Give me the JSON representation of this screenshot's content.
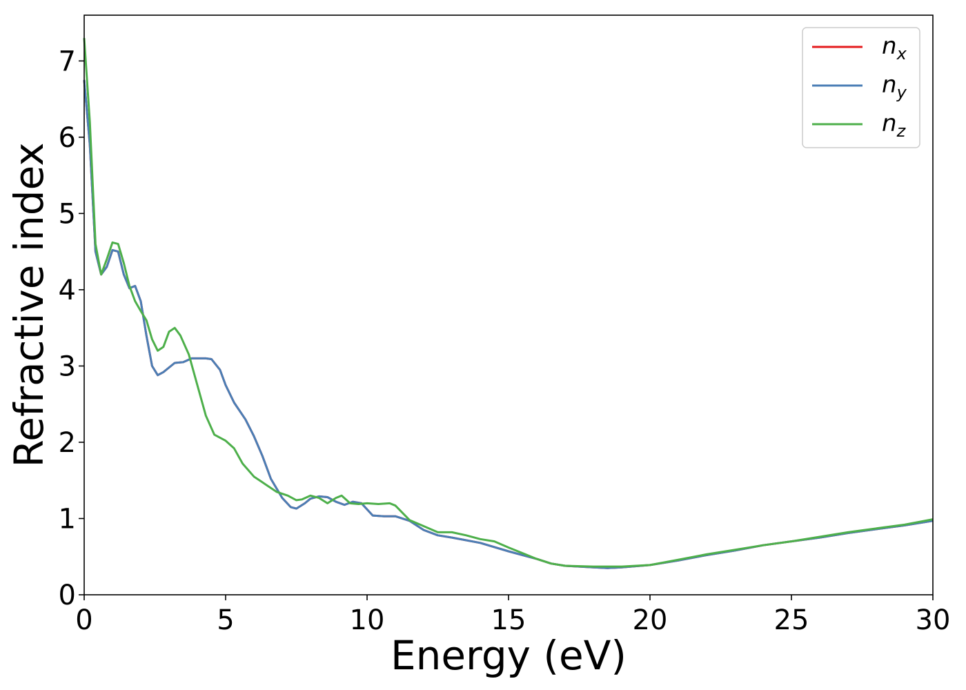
{
  "chart_data": {
    "type": "line",
    "title": "",
    "xlabel": "Energy (eV)",
    "ylabel": "Refractive index",
    "xlim": [
      0,
      30
    ],
    "ylim": [
      0,
      7.6
    ],
    "xticks": [
      0,
      5,
      10,
      15,
      20,
      25,
      30
    ],
    "yticks": [
      0,
      1,
      2,
      3,
      4,
      5,
      6,
      7
    ],
    "xtick_labels": [
      "0",
      "5",
      "10",
      "15",
      "20",
      "25",
      "30"
    ],
    "ytick_labels": [
      "0",
      "1",
      "2",
      "3",
      "4",
      "5",
      "6",
      "7"
    ],
    "grid": false,
    "legend_position": "top-right",
    "series": [
      {
        "name": "n",
        "subscript": "x",
        "color": "#e41a1c",
        "points": [
          [
            0,
            6.75
          ],
          [
            0.2,
            5.9
          ],
          [
            0.4,
            4.5
          ],
          [
            0.6,
            4.2
          ],
          [
            0.8,
            4.3
          ],
          [
            1.0,
            4.52
          ],
          [
            1.2,
            4.5
          ],
          [
            1.4,
            4.2
          ],
          [
            1.6,
            4.02
          ],
          [
            1.8,
            4.05
          ],
          [
            2.0,
            3.85
          ],
          [
            2.2,
            3.4
          ],
          [
            2.4,
            3.0
          ],
          [
            2.6,
            2.88
          ],
          [
            2.8,
            2.92
          ],
          [
            3.0,
            2.98
          ],
          [
            3.2,
            3.04
          ],
          [
            3.5,
            3.05
          ],
          [
            3.8,
            3.1
          ],
          [
            4.0,
            3.1
          ],
          [
            4.3,
            3.1
          ],
          [
            4.5,
            3.09
          ],
          [
            4.8,
            2.95
          ],
          [
            5.0,
            2.75
          ],
          [
            5.3,
            2.52
          ],
          [
            5.7,
            2.3
          ],
          [
            6.0,
            2.08
          ],
          [
            6.3,
            1.82
          ],
          [
            6.6,
            1.52
          ],
          [
            7.0,
            1.27
          ],
          [
            7.3,
            1.15
          ],
          [
            7.5,
            1.13
          ],
          [
            7.8,
            1.2
          ],
          [
            8.0,
            1.26
          ],
          [
            8.3,
            1.29
          ],
          [
            8.6,
            1.28
          ],
          [
            8.9,
            1.22
          ],
          [
            9.2,
            1.18
          ],
          [
            9.5,
            1.22
          ],
          [
            9.8,
            1.2
          ],
          [
            10.2,
            1.04
          ],
          [
            10.6,
            1.03
          ],
          [
            11.0,
            1.03
          ],
          [
            11.5,
            0.97
          ],
          [
            12.0,
            0.85
          ],
          [
            12.5,
            0.78
          ],
          [
            13.0,
            0.75
          ],
          [
            14.0,
            0.68
          ],
          [
            15.0,
            0.57
          ],
          [
            16.0,
            0.47
          ],
          [
            16.5,
            0.41
          ],
          [
            17.0,
            0.38
          ],
          [
            18.0,
            0.36
          ],
          [
            18.5,
            0.35
          ],
          [
            19.0,
            0.36
          ],
          [
            20.0,
            0.39
          ],
          [
            21.0,
            0.45
          ],
          [
            22.0,
            0.52
          ],
          [
            23.0,
            0.58
          ],
          [
            24.0,
            0.65
          ],
          [
            25.0,
            0.7
          ],
          [
            26.0,
            0.75
          ],
          [
            27.0,
            0.81
          ],
          [
            28.0,
            0.86
          ],
          [
            29.0,
            0.91
          ],
          [
            30.0,
            0.97
          ]
        ]
      },
      {
        "name": "n",
        "subscript": "y",
        "color": "#4a7eb5",
        "points": [
          [
            0,
            6.75
          ],
          [
            0.2,
            5.9
          ],
          [
            0.4,
            4.5
          ],
          [
            0.6,
            4.2
          ],
          [
            0.8,
            4.3
          ],
          [
            1.0,
            4.52
          ],
          [
            1.2,
            4.5
          ],
          [
            1.4,
            4.2
          ],
          [
            1.6,
            4.02
          ],
          [
            1.8,
            4.05
          ],
          [
            2.0,
            3.85
          ],
          [
            2.2,
            3.4
          ],
          [
            2.4,
            3.0
          ],
          [
            2.6,
            2.88
          ],
          [
            2.8,
            2.92
          ],
          [
            3.0,
            2.98
          ],
          [
            3.2,
            3.04
          ],
          [
            3.5,
            3.05
          ],
          [
            3.8,
            3.1
          ],
          [
            4.0,
            3.1
          ],
          [
            4.3,
            3.1
          ],
          [
            4.5,
            3.09
          ],
          [
            4.8,
            2.95
          ],
          [
            5.0,
            2.75
          ],
          [
            5.3,
            2.52
          ],
          [
            5.7,
            2.3
          ],
          [
            6.0,
            2.08
          ],
          [
            6.3,
            1.82
          ],
          [
            6.6,
            1.52
          ],
          [
            7.0,
            1.27
          ],
          [
            7.3,
            1.15
          ],
          [
            7.5,
            1.13
          ],
          [
            7.8,
            1.2
          ],
          [
            8.0,
            1.26
          ],
          [
            8.3,
            1.29
          ],
          [
            8.6,
            1.28
          ],
          [
            8.9,
            1.22
          ],
          [
            9.2,
            1.18
          ],
          [
            9.5,
            1.22
          ],
          [
            9.8,
            1.2
          ],
          [
            10.2,
            1.04
          ],
          [
            10.6,
            1.03
          ],
          [
            11.0,
            1.03
          ],
          [
            11.5,
            0.97
          ],
          [
            12.0,
            0.85
          ],
          [
            12.5,
            0.78
          ],
          [
            13.0,
            0.75
          ],
          [
            14.0,
            0.68
          ],
          [
            15.0,
            0.57
          ],
          [
            16.0,
            0.47
          ],
          [
            16.5,
            0.41
          ],
          [
            17.0,
            0.38
          ],
          [
            18.0,
            0.36
          ],
          [
            18.5,
            0.35
          ],
          [
            19.0,
            0.36
          ],
          [
            20.0,
            0.39
          ],
          [
            21.0,
            0.45
          ],
          [
            22.0,
            0.52
          ],
          [
            23.0,
            0.58
          ],
          [
            24.0,
            0.65
          ],
          [
            25.0,
            0.7
          ],
          [
            26.0,
            0.75
          ],
          [
            27.0,
            0.81
          ],
          [
            28.0,
            0.86
          ],
          [
            29.0,
            0.91
          ],
          [
            30.0,
            0.97
          ]
        ]
      },
      {
        "name": "n",
        "subscript": "z",
        "color": "#4daf4a",
        "points": [
          [
            0,
            7.3
          ],
          [
            0.2,
            6.2
          ],
          [
            0.4,
            4.6
          ],
          [
            0.6,
            4.2
          ],
          [
            0.8,
            4.4
          ],
          [
            1.0,
            4.62
          ],
          [
            1.2,
            4.6
          ],
          [
            1.4,
            4.35
          ],
          [
            1.6,
            4.05
          ],
          [
            1.8,
            3.85
          ],
          [
            2.0,
            3.72
          ],
          [
            2.2,
            3.6
          ],
          [
            2.4,
            3.35
          ],
          [
            2.6,
            3.2
          ],
          [
            2.8,
            3.25
          ],
          [
            3.0,
            3.45
          ],
          [
            3.2,
            3.5
          ],
          [
            3.4,
            3.4
          ],
          [
            3.7,
            3.15
          ],
          [
            4.0,
            2.75
          ],
          [
            4.3,
            2.35
          ],
          [
            4.6,
            2.1
          ],
          [
            5.0,
            2.02
          ],
          [
            5.3,
            1.92
          ],
          [
            5.6,
            1.72
          ],
          [
            6.0,
            1.55
          ],
          [
            6.4,
            1.45
          ],
          [
            6.8,
            1.35
          ],
          [
            7.2,
            1.3
          ],
          [
            7.5,
            1.24
          ],
          [
            7.7,
            1.25
          ],
          [
            8.0,
            1.3
          ],
          [
            8.3,
            1.27
          ],
          [
            8.6,
            1.2
          ],
          [
            8.9,
            1.27
          ],
          [
            9.1,
            1.3
          ],
          [
            9.4,
            1.2
          ],
          [
            9.7,
            1.19
          ],
          [
            10.0,
            1.2
          ],
          [
            10.4,
            1.19
          ],
          [
            10.8,
            1.2
          ],
          [
            11.0,
            1.17
          ],
          [
            11.5,
            0.98
          ],
          [
            12.0,
            0.9
          ],
          [
            12.5,
            0.82
          ],
          [
            13.0,
            0.82
          ],
          [
            13.5,
            0.78
          ],
          [
            14.0,
            0.73
          ],
          [
            14.5,
            0.7
          ],
          [
            15.0,
            0.62
          ],
          [
            16.0,
            0.47
          ],
          [
            16.5,
            0.41
          ],
          [
            17.0,
            0.38
          ],
          [
            18.0,
            0.37
          ],
          [
            19.0,
            0.37
          ],
          [
            20.0,
            0.39
          ],
          [
            21.0,
            0.46
          ],
          [
            22.0,
            0.53
          ],
          [
            23.0,
            0.59
          ],
          [
            24.0,
            0.65
          ],
          [
            25.0,
            0.7
          ],
          [
            26.0,
            0.76
          ],
          [
            27.0,
            0.82
          ],
          [
            28.0,
            0.87
          ],
          [
            29.0,
            0.92
          ],
          [
            30.0,
            0.99
          ]
        ]
      }
    ]
  }
}
